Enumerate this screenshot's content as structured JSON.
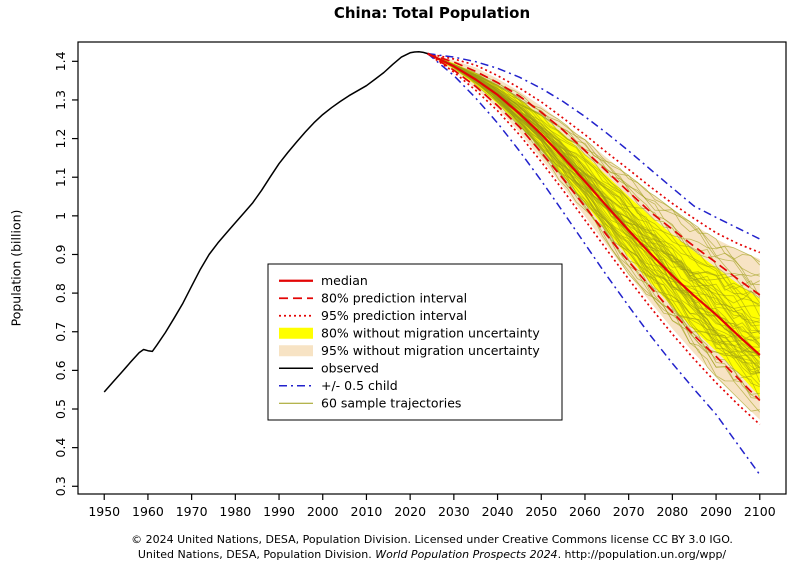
{
  "title": "China: Total Population",
  "footer": {
    "line1": "© 2024 United Nations, DESA, Population Division. Licensed under Creative Commons license CC BY 3.0 IGO.",
    "line2_prefix": "United Nations, DESA, Population Division. ",
    "line2_italic": "World Population Prospects 2024",
    "line2_suffix": ". http://population.un.org/wpp/"
  },
  "chart_data": {
    "type": "line",
    "title": "China: Total Population",
    "xlabel": "",
    "ylabel": "Population (billion)",
    "xlim": [
      1944,
      2106
    ],
    "ylim": [
      0.28,
      1.45
    ],
    "grid": false,
    "legend_position": "center-left",
    "x_ticks": [
      1950,
      1960,
      1970,
      1980,
      1990,
      2000,
      2010,
      2020,
      2030,
      2040,
      2050,
      2060,
      2070,
      2080,
      2090,
      2100
    ],
    "y_tick_values": [
      0.3,
      0.4,
      0.5,
      0.6,
      0.7,
      0.8,
      0.9,
      1.0,
      1.1,
      1.2,
      1.3,
      1.4
    ],
    "y_tick_labels": [
      "0.3",
      "0.4",
      "0.5",
      "0.6",
      "0.7",
      "0.8",
      "0.9",
      "1",
      "1.1",
      "1.2",
      "1.3",
      "1.4"
    ],
    "colors": {
      "median": "#e30505",
      "prediction_interval": "#e30505",
      "band_80": "#ffff00",
      "band_95": "#f7e3c4",
      "observed": "#000000",
      "half_child": "#2222cc",
      "trajectories": "#9c9c14"
    },
    "legend": {
      "items": [
        {
          "key": "median",
          "label": "median"
        },
        {
          "key": "pi80",
          "label": "80% prediction interval"
        },
        {
          "key": "pi95",
          "label": "95% prediction interval"
        },
        {
          "key": "nomig80",
          "label": "80% without migration uncertainty"
        },
        {
          "key": "nomig95",
          "label": "95% without migration uncertainty"
        },
        {
          "key": "observed",
          "label": "observed"
        },
        {
          "key": "half_child",
          "label": "+/- 0.5 child"
        },
        {
          "key": "samples",
          "label": "60 sample trajectories"
        }
      ]
    },
    "sample_trajectories": {
      "count": 60
    },
    "series": {
      "observed": {
        "years": [
          1950,
          1952,
          1954,
          1956,
          1958,
          1959,
          1960,
          1961,
          1962,
          1964,
          1966,
          1968,
          1970,
          1972,
          1974,
          1976,
          1978,
          1980,
          1982,
          1984,
          1986,
          1988,
          1990,
          1992,
          1994,
          1996,
          1998,
          2000,
          2002,
          2004,
          2006,
          2008,
          2010,
          2012,
          2014,
          2016,
          2018,
          2020,
          2021,
          2022,
          2023,
          2024
        ],
        "values": [
          0.544,
          0.57,
          0.595,
          0.621,
          0.646,
          0.654,
          0.651,
          0.649,
          0.665,
          0.698,
          0.735,
          0.774,
          0.818,
          0.862,
          0.9,
          0.93,
          0.956,
          0.982,
          1.008,
          1.034,
          1.066,
          1.101,
          1.135,
          1.164,
          1.191,
          1.217,
          1.241,
          1.262,
          1.28,
          1.296,
          1.311,
          1.324,
          1.337,
          1.354,
          1.371,
          1.392,
          1.411,
          1.422,
          1.424,
          1.425,
          1.423,
          1.42
        ]
      },
      "projection_years": [
        2024,
        2030,
        2035,
        2040,
        2045,
        2050,
        2055,
        2060,
        2065,
        2070,
        2075,
        2080,
        2085,
        2090,
        2095,
        2100
      ],
      "median": [
        1.42,
        1.387,
        1.353,
        1.313,
        1.265,
        1.211,
        1.152,
        1.089,
        1.025,
        0.962,
        0.902,
        0.845,
        0.793,
        0.744,
        0.691,
        0.64
      ],
      "pi80_upper": [
        1.42,
        1.398,
        1.374,
        1.345,
        1.31,
        1.268,
        1.222,
        1.169,
        1.115,
        1.062,
        1.01,
        0.965,
        0.921,
        0.879,
        0.836,
        0.795
      ],
      "pi80_lower": [
        1.42,
        1.377,
        1.335,
        1.285,
        1.23,
        1.164,
        1.096,
        1.024,
        0.95,
        0.882,
        0.815,
        0.751,
        0.69,
        0.636,
        0.58,
        0.522
      ],
      "pi95_upper": [
        1.42,
        1.406,
        1.39,
        1.363,
        1.331,
        1.295,
        1.253,
        1.21,
        1.164,
        1.12,
        1.075,
        1.032,
        0.993,
        0.956,
        0.928,
        0.905
      ],
      "pi95_lower": [
        1.42,
        1.372,
        1.325,
        1.272,
        1.21,
        1.14,
        1.066,
        0.989,
        0.912,
        0.836,
        0.763,
        0.694,
        0.629,
        0.568,
        0.512,
        0.46
      ],
      "nomig80_upper": [
        1.42,
        1.395,
        1.369,
        1.338,
        1.302,
        1.259,
        1.212,
        1.158,
        1.104,
        1.05,
        0.998,
        0.952,
        0.908,
        0.866,
        0.824,
        0.785
      ],
      "nomig80_lower": [
        1.42,
        1.38,
        1.339,
        1.29,
        1.236,
        1.171,
        1.104,
        1.033,
        0.96,
        0.893,
        0.827,
        0.764,
        0.704,
        0.65,
        0.594,
        0.532
      ],
      "nomig95_upper": [
        1.42,
        1.402,
        1.384,
        1.355,
        1.322,
        1.284,
        1.241,
        1.197,
        1.15,
        1.105,
        1.06,
        1.017,
        0.977,
        0.94,
        0.912,
        0.888
      ],
      "nomig95_lower": [
        1.42,
        1.375,
        1.33,
        1.278,
        1.217,
        1.148,
        1.075,
        0.999,
        0.923,
        0.848,
        0.776,
        0.708,
        0.644,
        0.584,
        0.528,
        0.472
      ],
      "plus_half_child": [
        1.42,
        1.411,
        1.399,
        1.382,
        1.359,
        1.33,
        1.296,
        1.257,
        1.214,
        1.168,
        1.12,
        1.072,
        1.025,
        0.996,
        0.968,
        0.94
      ],
      "minus_half_child": [
        1.42,
        1.363,
        1.305,
        1.24,
        1.168,
        1.091,
        1.01,
        0.927,
        0.845,
        0.766,
        0.69,
        0.618,
        0.551,
        0.486,
        0.408,
        0.33
      ]
    }
  }
}
